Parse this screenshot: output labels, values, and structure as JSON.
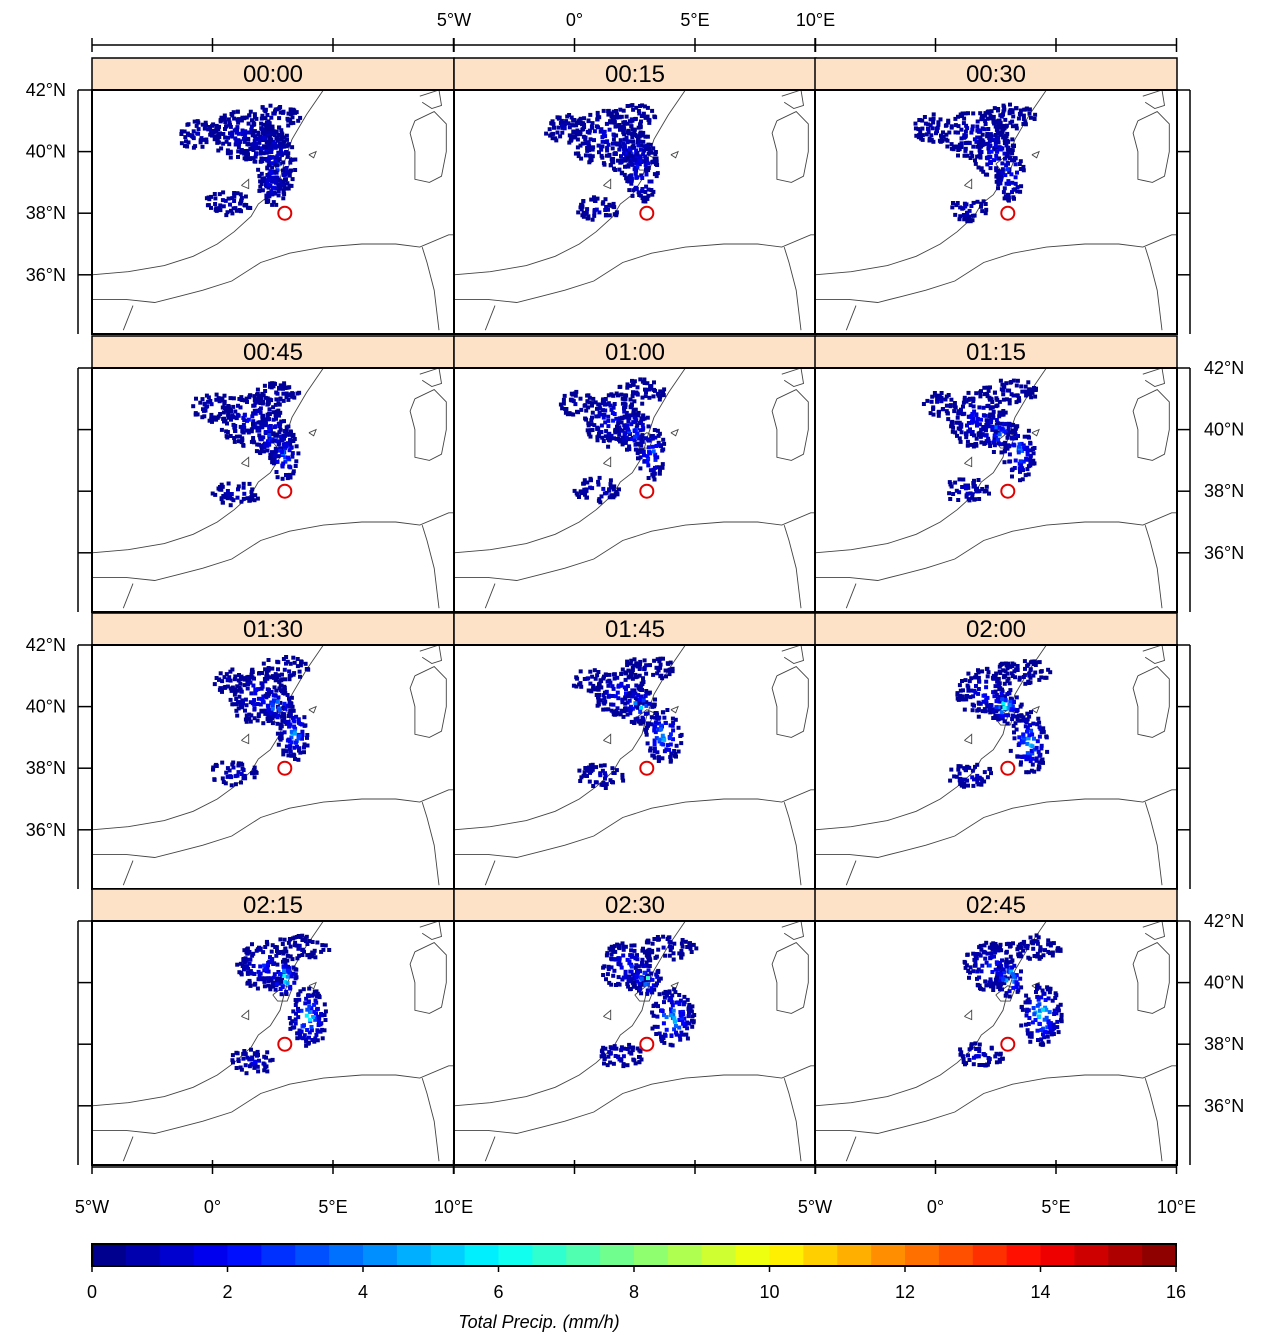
{
  "panels": [
    {
      "time": "00:00",
      "cells": [
        [
          1.2,
          40.6,
          1.4,
          0.8,
          1.6
        ],
        [
          2.2,
          40.2,
          1.0,
          0.7,
          2.6
        ],
        [
          2.6,
          39.6,
          0.8,
          1.0,
          3.4
        ],
        [
          2.4,
          39.0,
          0.6,
          0.7,
          2.2
        ],
        [
          -0.6,
          40.6,
          0.9,
          0.5,
          1.0
        ],
        [
          0.6,
          38.4,
          1.0,
          0.4,
          1.2
        ],
        [
          2.4,
          41.2,
          1.2,
          0.4,
          0.8
        ]
      ]
    },
    {
      "time": "00:15",
      "cells": [
        [
          1.2,
          40.5,
          1.5,
          0.9,
          1.6
        ],
        [
          2.3,
          40.0,
          1.0,
          0.8,
          2.8
        ],
        [
          2.7,
          39.4,
          0.7,
          1.0,
          3.8
        ],
        [
          0.9,
          38.2,
          0.9,
          0.4,
          1.4
        ],
        [
          -0.5,
          40.8,
          0.8,
          0.5,
          1.0
        ],
        [
          2.3,
          41.2,
          1.1,
          0.4,
          0.8
        ]
      ]
    },
    {
      "time": "00:30",
      "cells": [
        [
          1.6,
          40.6,
          1.4,
          0.8,
          1.8
        ],
        [
          2.4,
          40.0,
          0.9,
          0.8,
          3.0
        ],
        [
          3.0,
          39.3,
          0.6,
          0.9,
          4.0
        ],
        [
          1.3,
          38.2,
          0.8,
          0.4,
          1.4
        ],
        [
          -0.2,
          40.8,
          0.8,
          0.5,
          1.0
        ],
        [
          3.0,
          41.2,
          1.1,
          0.4,
          0.8
        ]
      ]
    },
    {
      "time": "00:45",
      "cells": [
        [
          1.5,
          40.4,
          1.3,
          0.9,
          2.0
        ],
        [
          2.4,
          39.9,
          0.9,
          0.8,
          3.6
        ],
        [
          2.9,
          39.2,
          0.6,
          0.9,
          4.4
        ],
        [
          0.9,
          38.0,
          1.0,
          0.4,
          1.4
        ],
        [
          -0.1,
          40.8,
          0.8,
          0.5,
          1.0
        ],
        [
          2.6,
          41.2,
          1.0,
          0.4,
          0.8
        ]
      ]
    },
    {
      "time": "01:00",
      "cells": [
        [
          1.5,
          40.4,
          1.2,
          0.9,
          2.4
        ],
        [
          2.4,
          40.0,
          0.8,
          0.7,
          4.6
        ],
        [
          3.1,
          39.3,
          0.6,
          0.9,
          4.8
        ],
        [
          0.9,
          38.1,
          1.0,
          0.4,
          1.6
        ],
        [
          0.0,
          40.9,
          0.7,
          0.4,
          1.0
        ],
        [
          2.7,
          41.3,
          1.0,
          0.4,
          0.8
        ]
      ]
    },
    {
      "time": "01:15",
      "cells": [
        [
          1.6,
          40.4,
          1.2,
          0.9,
          2.4
        ],
        [
          2.5,
          40.0,
          0.8,
          0.7,
          5.0
        ],
        [
          3.4,
          39.3,
          0.7,
          0.9,
          5.2
        ],
        [
          1.2,
          38.1,
          1.0,
          0.4,
          1.6
        ],
        [
          0.1,
          40.9,
          0.7,
          0.4,
          1.0
        ],
        [
          3.0,
          41.3,
          1.2,
          0.4,
          0.8
        ]
      ]
    },
    {
      "time": "01:30",
      "cells": [
        [
          1.8,
          40.4,
          1.2,
          0.9,
          2.6
        ],
        [
          2.6,
          40.1,
          0.7,
          0.6,
          6.2
        ],
        [
          3.3,
          39.2,
          0.7,
          0.9,
          5.4
        ],
        [
          0.8,
          37.9,
          1.0,
          0.4,
          1.6
        ],
        [
          0.6,
          40.9,
          0.7,
          0.4,
          1.0
        ],
        [
          2.9,
          41.3,
          1.0,
          0.4,
          0.8
        ]
      ]
    },
    {
      "time": "01:45",
      "cells": [
        [
          1.8,
          40.5,
          1.2,
          0.8,
          2.8
        ],
        [
          2.6,
          40.1,
          0.7,
          0.6,
          7.0
        ],
        [
          3.6,
          39.1,
          0.8,
          0.9,
          5.8
        ],
        [
          1.0,
          37.8,
          1.0,
          0.4,
          1.6
        ],
        [
          0.5,
          40.9,
          0.7,
          0.4,
          1.0
        ],
        [
          3.0,
          41.3,
          1.1,
          0.4,
          0.8
        ]
      ]
    },
    {
      "time": "02:00",
      "cells": [
        [
          2.0,
          40.5,
          1.2,
          0.8,
          2.8
        ],
        [
          2.8,
          40.1,
          0.7,
          0.6,
          8.0
        ],
        [
          3.8,
          38.9,
          0.8,
          1.0,
          6.2
        ],
        [
          1.4,
          37.8,
          1.0,
          0.4,
          1.8
        ],
        [
          3.5,
          41.2,
          1.2,
          0.4,
          0.8
        ]
      ]
    },
    {
      "time": "02:15",
      "cells": [
        [
          2.0,
          40.6,
          1.1,
          0.8,
          2.8
        ],
        [
          2.9,
          40.2,
          0.6,
          0.6,
          9.0
        ],
        [
          3.9,
          38.9,
          0.8,
          1.0,
          6.8
        ],
        [
          1.6,
          37.5,
          1.0,
          0.4,
          1.8
        ],
        [
          3.6,
          41.2,
          1.2,
          0.4,
          0.8
        ]
      ]
    },
    {
      "time": "02:30",
      "cells": [
        [
          2.1,
          40.6,
          1.1,
          0.8,
          3.0
        ],
        [
          2.9,
          40.2,
          0.6,
          0.6,
          10.0
        ],
        [
          4.0,
          38.9,
          0.9,
          1.0,
          7.0
        ],
        [
          1.8,
          37.7,
          1.0,
          0.4,
          1.8
        ],
        [
          3.8,
          41.2,
          1.2,
          0.4,
          0.8
        ]
      ]
    },
    {
      "time": "02:45",
      "cells": [
        [
          2.2,
          40.6,
          1.1,
          0.8,
          3.0
        ],
        [
          3.0,
          40.2,
          0.6,
          0.6,
          10.6
        ],
        [
          4.3,
          39.0,
          0.9,
          1.0,
          7.4
        ],
        [
          1.8,
          37.7,
          1.0,
          0.4,
          1.8
        ],
        [
          4.0,
          41.2,
          1.2,
          0.4,
          0.8
        ]
      ]
    }
  ],
  "marker": {
    "lon": 3.0,
    "lat": 38.0,
    "color": "#e00000"
  },
  "axes": {
    "lon_ticks": [
      {
        "value": -5,
        "label": "5°W"
      },
      {
        "value": 0,
        "label": "0°"
      },
      {
        "value": 5,
        "label": "5°E"
      },
      {
        "value": 10,
        "label": "10°E"
      }
    ],
    "lat_ticks": [
      {
        "value": 42,
        "label": "42°N"
      },
      {
        "value": 40,
        "label": "40°N"
      },
      {
        "value": 38,
        "label": "38°N"
      },
      {
        "value": 36,
        "label": "36°N"
      }
    ]
  },
  "colorbar": {
    "title": "Total Precip. (mm/h)",
    "min": 0,
    "max": 16,
    "tick_labels": [
      "0",
      "2",
      "4",
      "6",
      "8",
      "10",
      "12",
      "14",
      "16"
    ]
  },
  "style": {
    "strip_color": "#fde2c7",
    "coast_color": "#444444"
  }
}
